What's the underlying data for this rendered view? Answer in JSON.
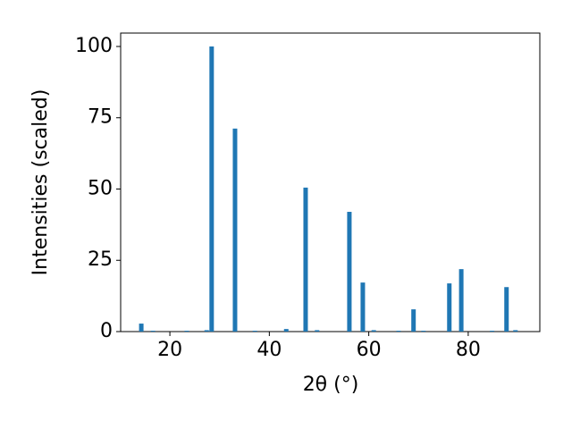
{
  "chart_data": {
    "type": "bar",
    "x_label": "2θ (°)",
    "y_label": "Intensities (scaled)",
    "color": "#1f77b4",
    "x": [
      14.25,
      16.6,
      23.4,
      27.4,
      28.4,
      33.1,
      37.1,
      43.4,
      47.3,
      49.6,
      56.1,
      58.8,
      61.0,
      66.0,
      69.0,
      71.0,
      76.2,
      78.6,
      84.8,
      87.7,
      89.5
    ],
    "values": [
      2.8,
      0.3,
      0.3,
      0.5,
      100,
      71.2,
      0.3,
      0.9,
      50.5,
      0.5,
      42,
      17.2,
      0.5,
      0.3,
      7.8,
      0.3,
      16.9,
      21.9,
      0.3,
      15.6,
      0.5
    ],
    "xlim": [
      10.1,
      94.4
    ],
    "ylim": [
      0,
      104.7
    ],
    "xticks": [
      20,
      40,
      60,
      80
    ],
    "yticks": [
      0,
      25,
      50,
      75,
      100
    ]
  }
}
